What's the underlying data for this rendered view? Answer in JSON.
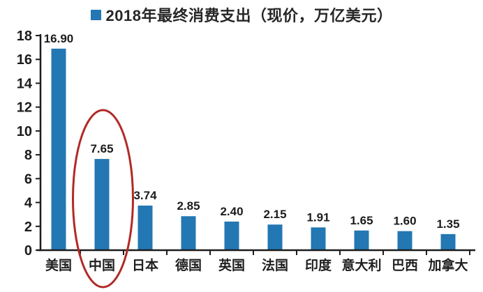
{
  "chart_data": {
    "type": "bar",
    "title": "2018年最终消费支出（现价，万亿美元）",
    "legend": [
      {
        "label": "2018年最终消费支出（现价，万亿美元）",
        "color": "#2377b3"
      }
    ],
    "legend_position": "top-center",
    "categories": [
      "美国",
      "中国",
      "日本",
      "德国",
      "英国",
      "法国",
      "印度",
      "意大利",
      "巴西",
      "加拿大"
    ],
    "values": [
      16.9,
      7.65,
      3.74,
      2.85,
      2.4,
      2.15,
      1.91,
      1.65,
      1.6,
      1.35
    ],
    "value_labels": [
      "16.90",
      "7.65",
      "3.74",
      "2.85",
      "2.40",
      "2.15",
      "1.91",
      "1.65",
      "1.60",
      "1.35"
    ],
    "xlabel": "",
    "ylabel": "",
    "ylim": [
      0,
      18
    ],
    "yticks": [
      0,
      2,
      4,
      6,
      8,
      10,
      12,
      14,
      16,
      18
    ],
    "grid": false,
    "bar_color": "#2377b3",
    "axis_color": "#1c1c1c",
    "annotation": {
      "type": "ellipse-highlight",
      "target_category": "中国",
      "target_index": 1,
      "color": "#b02a26"
    }
  }
}
